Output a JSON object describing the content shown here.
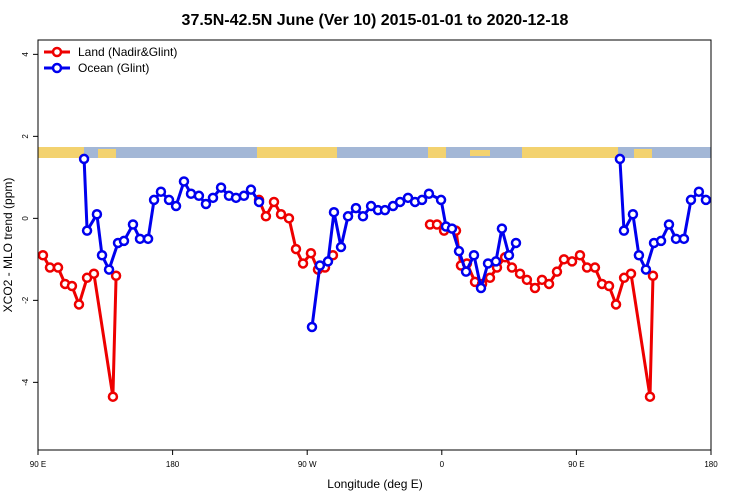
{
  "chart_data": {
    "type": "line",
    "title": "37.5N-42.5N June (Ver 10)   2015-01-01 to 2020-12-18",
    "x_label": "Longitude (deg E)",
    "y_label": "XCO2 - MLO trend (ppm)",
    "xlim": [
      90,
      540
    ],
    "xticks": [
      {
        "value": 90,
        "label": "90 E"
      },
      {
        "value": 180,
        "label": "180"
      },
      {
        "value": 270,
        "label": "90 W"
      },
      {
        "value": 360,
        "label": "0"
      },
      {
        "value": 450,
        "label": "90 E"
      },
      {
        "value": 540,
        "label": "180"
      }
    ],
    "ylim": [
      -5.65,
      4.35
    ],
    "yticks": [
      -4,
      -2,
      0,
      2,
      4
    ],
    "legend": "top-left",
    "series": [
      {
        "name": "Land (Nadir&Glint)",
        "color": "#ee0000",
        "x": [
          93.3,
          98.0,
          103.4,
          108.1,
          112.7,
          117.4,
          122.8,
          127.4,
          140.1,
          142.2,
          null,
          237.8,
          242.4,
          247.8,
          252.5,
          257.8,
          262.5,
          267.2,
          272.5,
          277.2,
          281.9,
          287.2,
          null,
          352.1,
          356.8,
          361.5,
          369.5,
          372.8,
          376.8,
          382.2,
          386.9,
          392.2,
          396.9,
          402.3,
          406.9,
          412.3,
          416.9,
          422.3,
          427.0,
          431.7,
          437.0,
          441.7,
          447.1,
          452.4,
          457.1,
          462.4,
          467.1,
          471.8,
          476.5,
          481.9,
          486.5,
          499.2,
          501.2
        ],
        "values": [
          -0.9,
          -1.2,
          -1.2,
          -1.6,
          -1.65,
          -2.1,
          -1.45,
          -1.35,
          -4.35,
          -1.4,
          null,
          0.45,
          0.05,
          0.4,
          0.1,
          0.0,
          -0.75,
          -1.1,
          -0.85,
          -1.25,
          -1.2,
          -0.9,
          null,
          -0.15,
          -0.15,
          -0.3,
          -0.3,
          -1.15,
          -1.1,
          -1.55,
          -1.6,
          -1.45,
          -1.2,
          -0.95,
          -1.2,
          -1.35,
          -1.5,
          -1.7,
          -1.5,
          -1.6,
          -1.3,
          -1.0,
          -1.05,
          -0.9,
          -1.2,
          -1.2,
          -1.6,
          -1.65,
          -2.1,
          -1.45,
          -1.35,
          -4.35,
          -1.4
        ]
      },
      {
        "name": "Ocean (Glint)",
        "color": "#0000ee",
        "x": [
          120.8,
          122.8,
          129.4,
          132.8,
          137.5,
          143.5,
          147.5,
          153.5,
          158.2,
          163.6,
          167.6,
          172.2,
          177.6,
          182.3,
          187.6,
          192.3,
          197.6,
          202.3,
          207.0,
          212.4,
          217.7,
          222.4,
          227.7,
          232.4,
          237.8,
          null,
          273.2,
          278.5,
          283.9,
          287.9,
          292.6,
          297.3,
          302.6,
          307.3,
          312.7,
          317.3,
          322.0,
          327.4,
          332.1,
          337.4,
          342.1,
          346.8,
          351.4,
          359.5,
          362.8,
          366.8,
          371.5,
          376.2,
          381.5,
          386.2,
          390.9,
          396.2,
          400.2,
          404.9,
          409.6,
          null,
          479.1,
          481.8,
          487.8,
          491.8,
          496.5,
          501.9,
          506.6,
          511.9,
          516.6,
          521.9,
          526.6,
          531.9,
          536.6
        ],
        "values": [
          1.45,
          -0.3,
          0.1,
          -0.9,
          -1.25,
          -0.6,
          -0.55,
          -0.15,
          -0.5,
          -0.5,
          0.45,
          0.65,
          0.45,
          0.3,
          0.9,
          0.6,
          0.55,
          0.35,
          0.5,
          0.75,
          0.55,
          0.5,
          0.55,
          0.7,
          0.4,
          null,
          -2.65,
          -1.15,
          -1.05,
          0.15,
          -0.7,
          0.05,
          0.25,
          0.05,
          0.3,
          0.2,
          0.2,
          0.3,
          0.4,
          0.5,
          0.4,
          0.45,
          0.6,
          0.45,
          -0.2,
          -0.25,
          -0.8,
          -1.3,
          -0.9,
          -1.7,
          -1.1,
          -1.05,
          -0.25,
          -0.9,
          -0.6,
          null,
          1.45,
          -0.3,
          0.1,
          -0.9,
          -1.25,
          -0.6,
          -0.55,
          -0.15,
          -0.5,
          -0.5,
          0.45,
          0.65,
          0.45
        ]
      }
    ]
  }
}
